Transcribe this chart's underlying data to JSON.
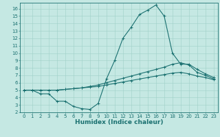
{
  "xlabel": "Humidex (Indice chaleur)",
  "xlim": [
    -0.5,
    23.5
  ],
  "ylim": [
    2,
    16.8
  ],
  "yticks": [
    2,
    3,
    4,
    5,
    6,
    7,
    8,
    9,
    10,
    11,
    12,
    13,
    14,
    15,
    16
  ],
  "xticks": [
    0,
    1,
    2,
    3,
    4,
    5,
    6,
    7,
    8,
    9,
    10,
    11,
    12,
    13,
    14,
    15,
    16,
    17,
    18,
    19,
    20,
    21,
    22,
    23
  ],
  "bg_color": "#c5e8e3",
  "grid_color": "#9fcfc8",
  "line_color": "#1a7070",
  "line1_x": [
    0,
    1,
    2,
    3,
    4,
    5,
    6,
    7,
    8,
    9,
    10,
    11,
    12,
    13,
    14,
    15,
    16,
    17,
    18,
    19,
    20,
    21,
    22,
    23
  ],
  "line1_y": [
    5.0,
    5.0,
    4.5,
    4.5,
    3.5,
    3.5,
    2.8,
    2.5,
    2.4,
    3.2,
    6.5,
    9.0,
    12.0,
    13.5,
    15.2,
    15.8,
    16.5,
    15.0,
    10.0,
    8.5,
    8.5,
    7.8,
    7.2,
    6.7
  ],
  "line2_x": [
    0,
    1,
    2,
    3,
    4,
    5,
    6,
    7,
    8,
    9,
    10,
    11,
    12,
    13,
    14,
    15,
    16,
    17,
    18,
    19,
    20,
    21,
    22,
    23
  ],
  "line2_y": [
    5.0,
    5.0,
    5.0,
    5.0,
    5.0,
    5.1,
    5.2,
    5.3,
    5.5,
    5.7,
    6.0,
    6.3,
    6.6,
    6.9,
    7.2,
    7.5,
    7.8,
    8.1,
    8.5,
    8.7,
    8.4,
    7.4,
    7.0,
    6.5
  ],
  "line3_x": [
    0,
    1,
    2,
    3,
    4,
    5,
    6,
    7,
    8,
    9,
    10,
    11,
    12,
    13,
    14,
    15,
    16,
    17,
    18,
    19,
    20,
    21,
    22,
    23
  ],
  "line3_y": [
    5.0,
    5.0,
    5.0,
    5.0,
    5.0,
    5.1,
    5.2,
    5.3,
    5.4,
    5.5,
    5.7,
    5.9,
    6.1,
    6.3,
    6.5,
    6.7,
    6.9,
    7.1,
    7.3,
    7.4,
    7.2,
    6.9,
    6.7,
    6.4
  ],
  "figsize": [
    3.2,
    2.0
  ],
  "dpi": 100,
  "tick_fontsize": 5.0,
  "xlabel_fontsize": 6.5,
  "marker": "+",
  "markersize": 2.5,
  "linewidth": 0.8
}
